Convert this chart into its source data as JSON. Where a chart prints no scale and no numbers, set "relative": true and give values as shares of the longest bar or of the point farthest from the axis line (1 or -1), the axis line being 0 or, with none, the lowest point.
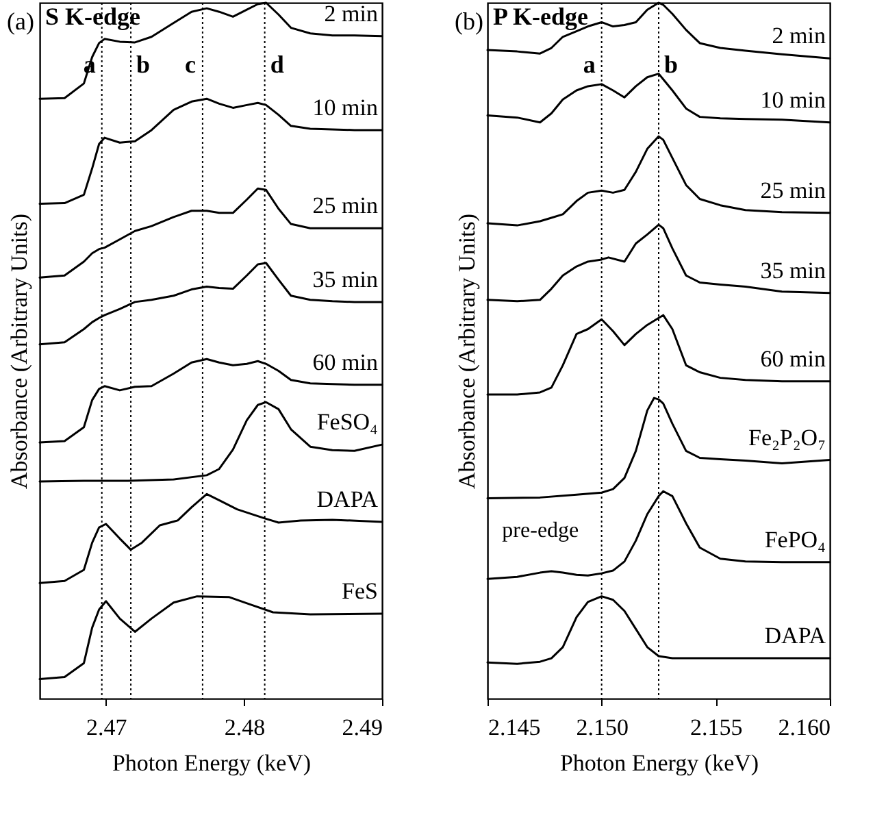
{
  "chart_data": [
    {
      "type": "line",
      "title": "(a)",
      "xlabel": "Photon Energy (keV)",
      "ylabel": "Absorbance (Arbitrary Units)",
      "relative": true,
      "tick_labels": "x",
      "line_style": "solid",
      "xlim": [
        2.4652,
        2.49
      ],
      "xticks": [
        2.47,
        2.48,
        2.49
      ],
      "annotations": [
        "S K-edge"
      ],
      "ref_lines": [
        {
          "axis": "x",
          "value": 2.4697,
          "label": "a",
          "line_style": "dotted"
        },
        {
          "axis": "x",
          "value": 2.4718,
          "label": "b",
          "line_style": "dotted"
        },
        {
          "axis": "x",
          "value": 2.477,
          "label": "c",
          "line_style": "dotted"
        },
        {
          "axis": "x",
          "value": 2.4815,
          "label": "d",
          "line_style": "dotted"
        }
      ],
      "series": [
        {
          "name": "2 min",
          "color": "#000000",
          "x": [
            2.4652,
            2.467,
            2.4684,
            2.469,
            2.4695,
            2.4699,
            2.471,
            2.4721,
            2.4733,
            2.4749,
            2.4762,
            2.4773,
            2.4782,
            2.4792,
            2.4802,
            2.481,
            2.4816,
            2.4825,
            2.4834,
            2.4848,
            2.4864,
            2.488,
            2.49
          ],
          "values": [
            0.862,
            0.863,
            0.884,
            0.922,
            0.942,
            0.948,
            0.944,
            0.943,
            0.951,
            0.971,
            0.987,
            0.992,
            0.987,
            0.98,
            0.99,
            0.998,
            1,
            0.983,
            0.964,
            0.956,
            0.953,
            0.953,
            0.952
          ]
        },
        {
          "name": "10 min",
          "color": "#000000",
          "x": [
            2.4652,
            2.467,
            2.4684,
            2.469,
            2.4695,
            2.4699,
            2.471,
            2.4721,
            2.4733,
            2.4749,
            2.4762,
            2.4773,
            2.4782,
            2.4792,
            2.4802,
            2.481,
            2.4816,
            2.4825,
            2.4834,
            2.4848,
            2.4864,
            2.488,
            2.49
          ],
          "values": [
            0.711,
            0.712,
            0.724,
            0.762,
            0.797,
            0.806,
            0.799,
            0.801,
            0.817,
            0.846,
            0.858,
            0.862,
            0.855,
            0.849,
            0.853,
            0.856,
            0.853,
            0.839,
            0.823,
            0.819,
            0.818,
            0.817,
            0.817
          ]
        },
        {
          "name": "25 min",
          "color": "#000000",
          "x": [
            2.4652,
            2.467,
            2.4684,
            2.469,
            2.4695,
            2.4699,
            2.471,
            2.4721,
            2.4733,
            2.4749,
            2.4762,
            2.4773,
            2.4782,
            2.4792,
            2.4802,
            2.481,
            2.4816,
            2.4825,
            2.4834,
            2.4848,
            2.4864,
            2.488,
            2.49
          ],
          "values": [
            0.605,
            0.608,
            0.628,
            0.64,
            0.646,
            0.648,
            0.66,
            0.672,
            0.679,
            0.692,
            0.701,
            0.701,
            0.698,
            0.698,
            0.717,
            0.733,
            0.731,
            0.704,
            0.682,
            0.676,
            0.676,
            0.676,
            0.676
          ]
        },
        {
          "name": "35 min",
          "color": "#000000",
          "x": [
            2.4652,
            2.467,
            2.4684,
            2.469,
            2.4695,
            2.4699,
            2.471,
            2.4721,
            2.4733,
            2.4749,
            2.4762,
            2.4773,
            2.4782,
            2.4792,
            2.4802,
            2.481,
            2.4816,
            2.4825,
            2.4834,
            2.4848,
            2.4864,
            2.488,
            2.49
          ],
          "values": [
            0.509,
            0.512,
            0.531,
            0.541,
            0.547,
            0.551,
            0.56,
            0.57,
            0.573,
            0.579,
            0.588,
            0.592,
            0.59,
            0.589,
            0.608,
            0.624,
            0.626,
            0.602,
            0.579,
            0.573,
            0.571,
            0.57,
            0.57
          ]
        },
        {
          "name": "60 min",
          "color": "#000000",
          "x": [
            2.4652,
            2.467,
            2.4684,
            2.469,
            2.4695,
            2.4699,
            2.471,
            2.4721,
            2.4733,
            2.4749,
            2.4762,
            2.4773,
            2.4782,
            2.4792,
            2.4802,
            2.481,
            2.4816,
            2.4825,
            2.4834,
            2.4848,
            2.4864,
            2.488,
            2.49
          ],
          "values": [
            0.368,
            0.37,
            0.39,
            0.429,
            0.445,
            0.449,
            0.443,
            0.448,
            0.449,
            0.467,
            0.483,
            0.488,
            0.483,
            0.479,
            0.481,
            0.485,
            0.481,
            0.471,
            0.458,
            0.453,
            0.452,
            0.451,
            0.451
          ]
        },
        {
          "name": "FeSO₄",
          "color": "#000000",
          "x": [
            2.4652,
            2.4684,
            2.4716,
            2.4749,
            2.4773,
            2.4782,
            2.4792,
            2.4802,
            2.481,
            2.4816,
            2.4825,
            2.4834,
            2.4848,
            2.4864,
            2.488,
            2.49
          ],
          "values": [
            0.312,
            0.313,
            0.313,
            0.315,
            0.321,
            0.33,
            0.358,
            0.4,
            0.422,
            0.426,
            0.416,
            0.387,
            0.362,
            0.357,
            0.356,
            0.365
          ]
        },
        {
          "name": "DAPA",
          "color": "#000000",
          "x": [
            2.4652,
            2.467,
            2.4684,
            2.469,
            2.4695,
            2.47,
            2.471,
            2.4718,
            2.4726,
            2.4739,
            2.4752,
            2.4762,
            2.4773,
            2.4782,
            2.4795,
            2.4815,
            2.4825,
            2.4841,
            2.4864,
            2.49
          ],
          "values": [
            0.166,
            0.169,
            0.185,
            0.224,
            0.246,
            0.251,
            0.23,
            0.214,
            0.224,
            0.249,
            0.256,
            0.275,
            0.294,
            0.285,
            0.272,
            0.259,
            0.253,
            0.256,
            0.257,
            0.254
          ]
        },
        {
          "name": "FeS",
          "color": "#000000",
          "x": [
            2.4652,
            2.467,
            2.4684,
            2.469,
            2.4695,
            2.47,
            2.471,
            2.4721,
            2.4733,
            2.4749,
            2.4766,
            2.4789,
            2.4805,
            2.4821,
            2.4848,
            2.49
          ],
          "values": [
            0.028,
            0.031,
            0.051,
            0.102,
            0.128,
            0.14,
            0.115,
            0.096,
            0.115,
            0.138,
            0.147,
            0.146,
            0.135,
            0.124,
            0.121,
            0.122
          ]
        }
      ]
    },
    {
      "type": "line",
      "title": "(b)",
      "xlabel": "Photon Energy (keV)",
      "ylabel": "Absorbance (Arbitrary Units)",
      "relative": true,
      "tick_labels": "x",
      "line_style": "solid",
      "xlim": [
        2.145,
        2.16
      ],
      "xticks": [
        2.145,
        {
          "value": 2.15,
          "label": "2.150"
        },
        2.155,
        {
          "value": 2.16,
          "label": "2.160"
        }
      ],
      "annotations": [
        "P K-edge",
        {
          "text": "pre-edge",
          "x": 2.1478,
          "y": 0.183
        }
      ],
      "ref_lines": [
        {
          "axis": "x",
          "value": 2.15,
          "label": "a",
          "line_style": "dotted"
        },
        {
          "axis": "x",
          "value": 2.1525,
          "label": "b",
          "line_style": "dotted"
        }
      ],
      "series": [
        {
          "name": "2 min",
          "color": "#000000",
          "x": [
            2.145,
            2.1463,
            2.1473,
            2.1478,
            2.1483,
            2.1489,
            2.1494,
            2.15,
            2.1505,
            2.151,
            2.1515,
            2.152,
            2.1525,
            2.1527,
            2.1531,
            2.1537,
            2.1543,
            2.1552,
            2.1563,
            2.1579,
            2.16
          ],
          "values": [
            0.932,
            0.93,
            0.927,
            0.935,
            0.951,
            0.959,
            0.966,
            0.972,
            0.966,
            0.968,
            0.972,
            0.99,
            1,
            0.997,
            0.984,
            0.961,
            0.942,
            0.935,
            0.931,
            0.926,
            0.92
          ]
        },
        {
          "name": "10 min",
          "color": "#000000",
          "x": [
            2.145,
            2.1463,
            2.1473,
            2.1478,
            2.1483,
            2.1489,
            2.1494,
            2.15,
            2.1505,
            2.151,
            2.1515,
            2.152,
            2.1525,
            2.1527,
            2.1531,
            2.1537,
            2.1543,
            2.1552,
            2.1563,
            2.1579,
            2.16
          ],
          "values": [
            0.838,
            0.835,
            0.828,
            0.841,
            0.861,
            0.874,
            0.88,
            0.883,
            0.874,
            0.864,
            0.88,
            0.893,
            0.898,
            0.89,
            0.874,
            0.848,
            0.836,
            0.834,
            0.833,
            0.832,
            0.828
          ]
        },
        {
          "name": "25 min",
          "color": "#000000",
          "x": [
            2.145,
            2.1463,
            2.1473,
            2.1478,
            2.1483,
            2.1489,
            2.1494,
            2.15,
            2.1505,
            2.151,
            2.1515,
            2.152,
            2.1525,
            2.1527,
            2.1531,
            2.1537,
            2.1543,
            2.1552,
            2.1563,
            2.1579,
            2.16
          ],
          "values": [
            0.683,
            0.68,
            0.686,
            0.691,
            0.696,
            0.715,
            0.727,
            0.73,
            0.727,
            0.731,
            0.757,
            0.79,
            0.808,
            0.803,
            0.777,
            0.738,
            0.718,
            0.709,
            0.702,
            0.699,
            0.698
          ]
        },
        {
          "name": "35 min",
          "color": "#000000",
          "x": [
            2.145,
            2.1463,
            2.1473,
            2.1478,
            2.1483,
            2.1489,
            2.1494,
            2.15,
            2.1503,
            2.151,
            2.1515,
            2.152,
            2.1525,
            2.1527,
            2.1531,
            2.1537,
            2.1543,
            2.1552,
            2.1563,
            2.1579,
            2.16
          ],
          "values": [
            0.573,
            0.571,
            0.573,
            0.589,
            0.608,
            0.621,
            0.628,
            0.631,
            0.634,
            0.628,
            0.654,
            0.667,
            0.681,
            0.676,
            0.647,
            0.608,
            0.598,
            0.595,
            0.592,
            0.585,
            0.583
          ]
        },
        {
          "name": "60 min",
          "color": "#000000",
          "x": [
            2.145,
            2.1463,
            2.1473,
            2.1478,
            2.1483,
            2.1489,
            2.1494,
            2.15,
            2.1505,
            2.151,
            2.1515,
            2.152,
            2.1525,
            2.1527,
            2.1531,
            2.1537,
            2.1543,
            2.1552,
            2.1563,
            2.1579,
            2.16
          ],
          "values": [
            0.437,
            0.437,
            0.44,
            0.447,
            0.479,
            0.524,
            0.531,
            0.545,
            0.528,
            0.508,
            0.524,
            0.537,
            0.547,
            0.551,
            0.531,
            0.479,
            0.469,
            0.461,
            0.458,
            0.456,
            0.456
          ]
        },
        {
          "name": "Fe₂P₂O₇",
          "color": "#000000",
          "x": [
            2.145,
            2.1473,
            2.1489,
            2.15,
            2.1505,
            2.151,
            2.1515,
            2.152,
            2.1523,
            2.1525,
            2.1527,
            2.1531,
            2.1537,
            2.1543,
            2.1552,
            2.1563,
            2.1579,
            2.16
          ],
          "values": [
            0.288,
            0.289,
            0.293,
            0.296,
            0.301,
            0.317,
            0.356,
            0.414,
            0.432,
            0.43,
            0.424,
            0.395,
            0.356,
            0.346,
            0.344,
            0.342,
            0.338,
            0.343
          ]
        },
        {
          "name": "FePO₄",
          "color": "#000000",
          "x": [
            2.145,
            2.1463,
            2.1473,
            2.1478,
            2.1483,
            2.1489,
            2.1494,
            2.15,
            2.1505,
            2.151,
            2.1515,
            2.152,
            2.1525,
            2.1527,
            2.1531,
            2.1537,
            2.1543,
            2.1552,
            2.1563,
            2.1579,
            2.16
          ],
          "values": [
            0.172,
            0.175,
            0.181,
            0.183,
            0.181,
            0.178,
            0.177,
            0.18,
            0.184,
            0.197,
            0.227,
            0.265,
            0.291,
            0.298,
            0.291,
            0.252,
            0.217,
            0.201,
            0.197,
            0.196,
            0.196
          ]
        },
        {
          "name": "DAPA",
          "color": "#000000",
          "x": [
            2.145,
            2.1463,
            2.1473,
            2.1478,
            2.1483,
            2.1489,
            2.1494,
            2.15,
            2.1505,
            2.151,
            2.1515,
            2.152,
            2.1525,
            2.1531,
            2.1543,
            2.1563,
            2.16
          ],
          "values": [
            0.052,
            0.05,
            0.053,
            0.058,
            0.074,
            0.117,
            0.139,
            0.147,
            0.142,
            0.126,
            0.1,
            0.074,
            0.061,
            0.058,
            0.058,
            0.058,
            0.058
          ]
        }
      ]
    }
  ]
}
